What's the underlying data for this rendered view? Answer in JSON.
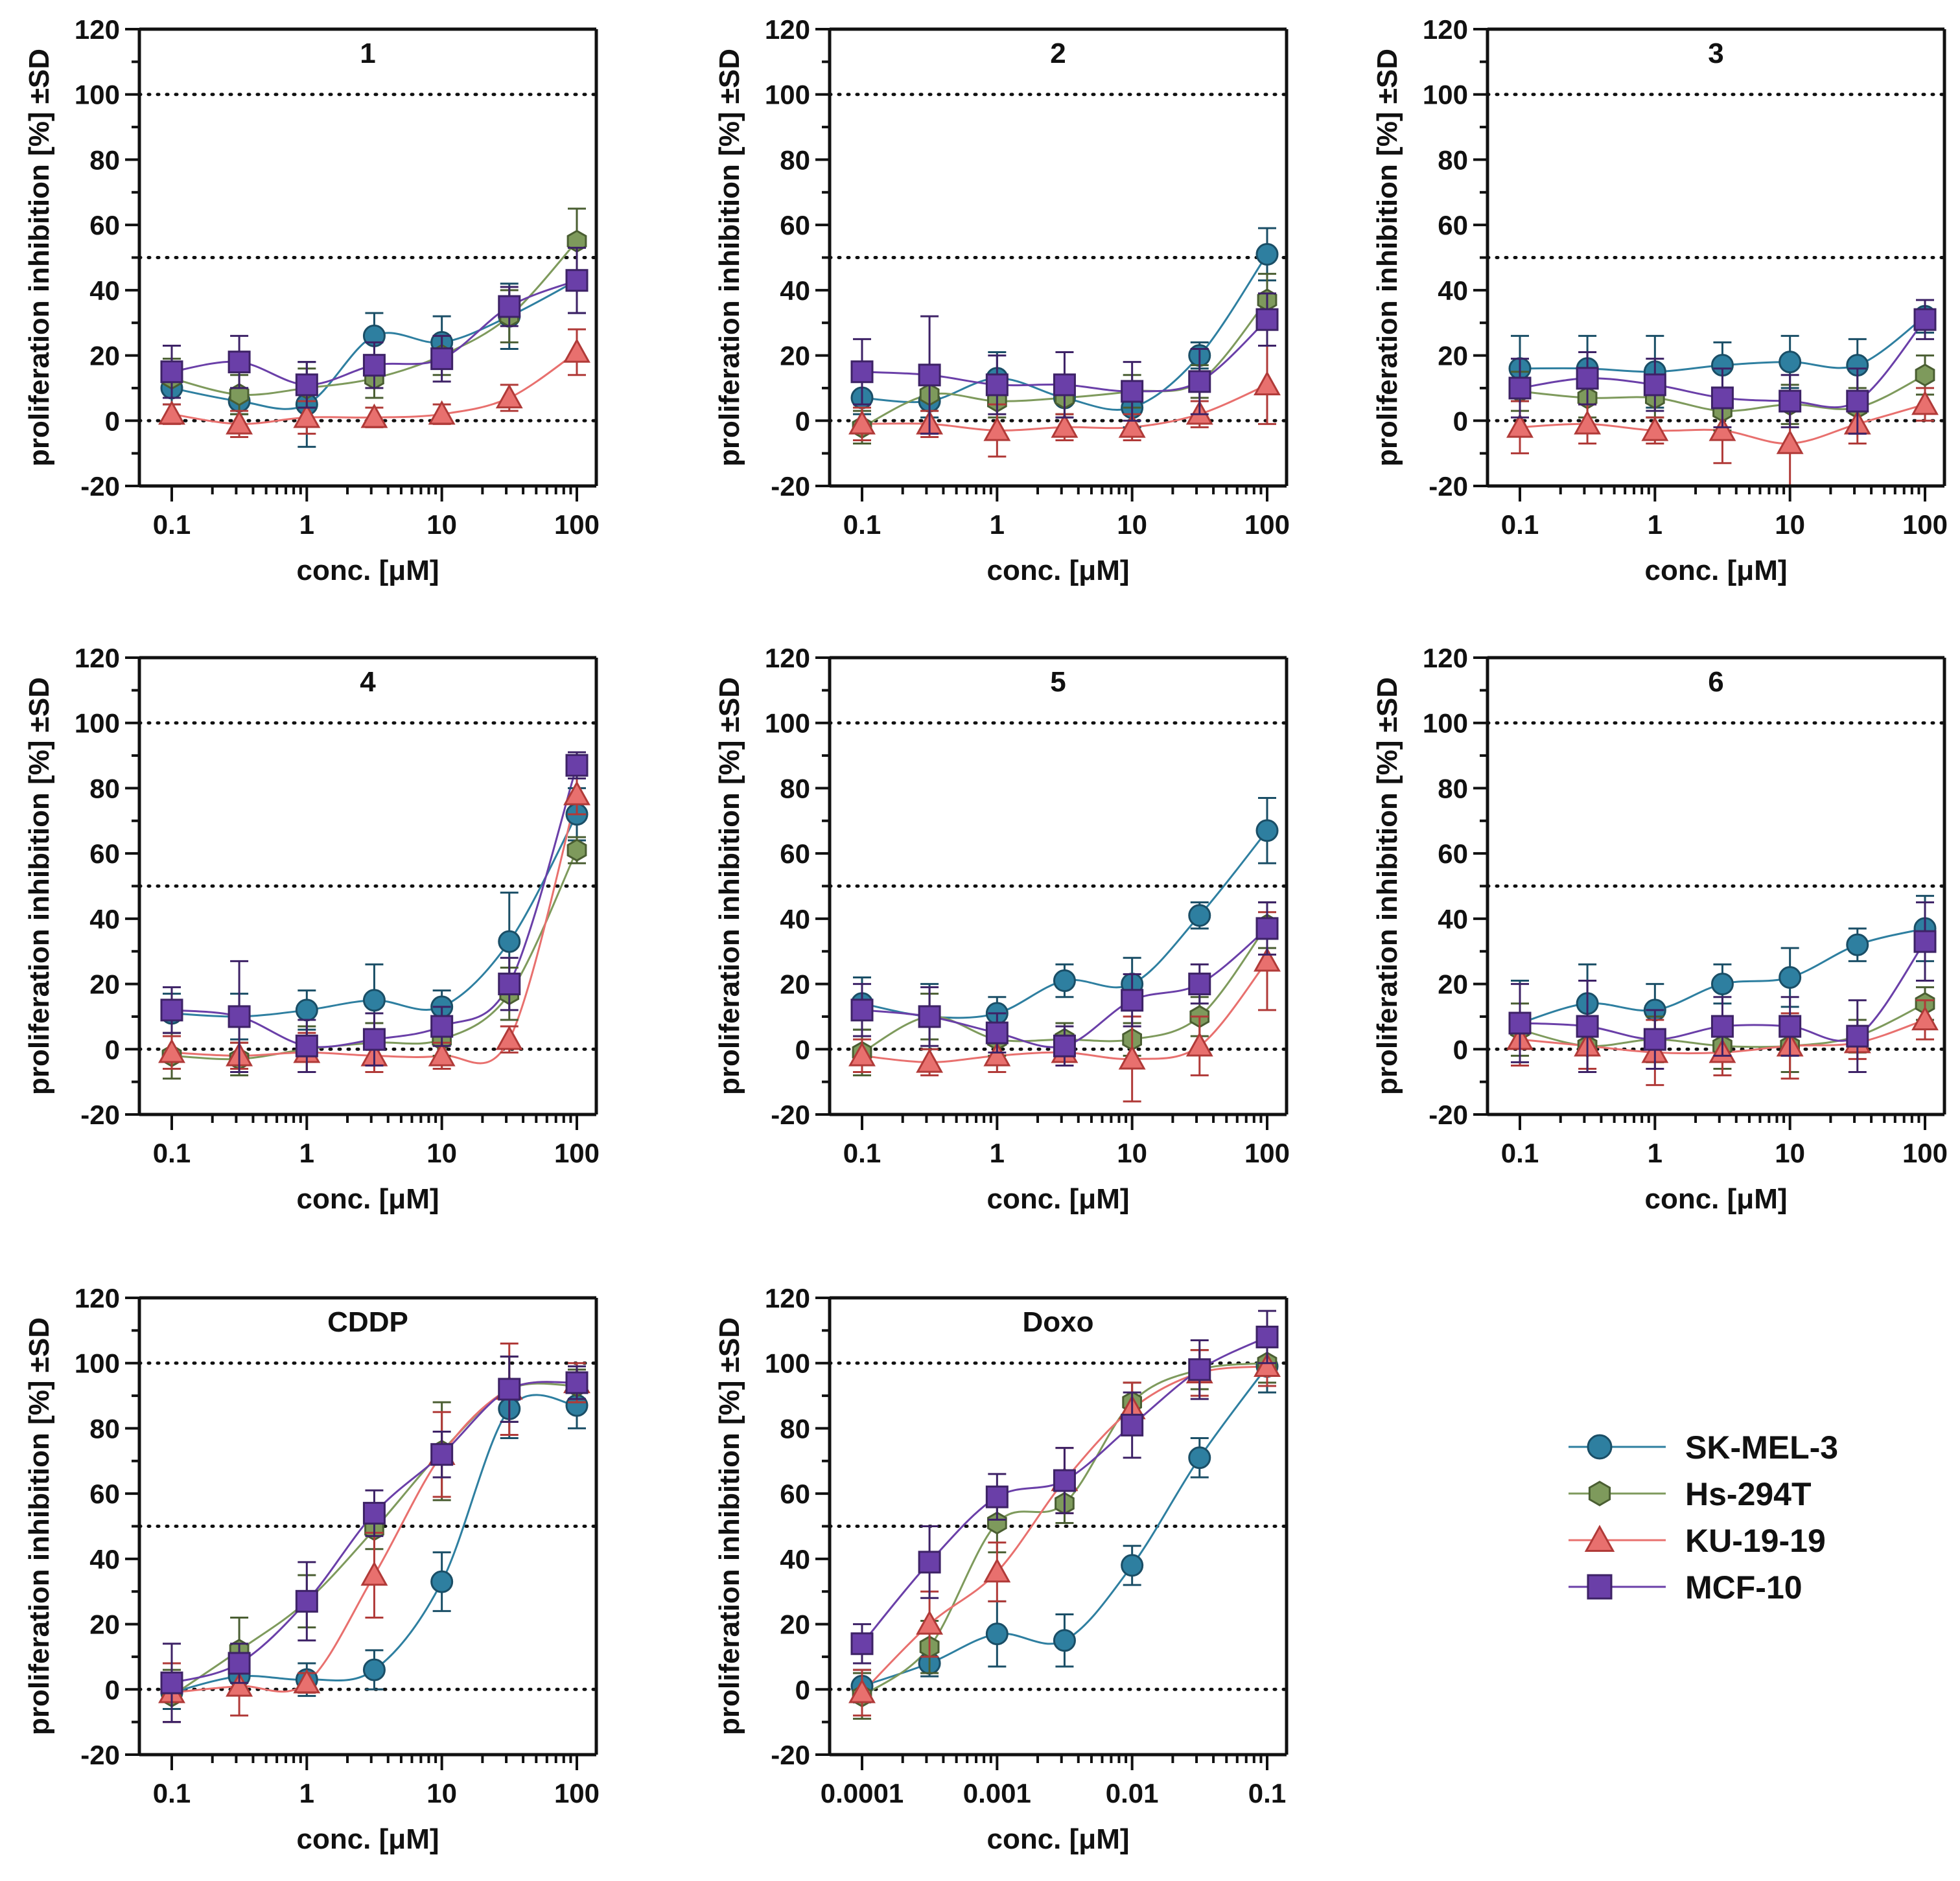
{
  "figure": {
    "y_axis_label": "proliferation inhibition [%] ±SD",
    "x_axis_label": "conc. [μM]",
    "reference_lines": [
      0,
      50,
      100
    ]
  },
  "legend": {
    "items": [
      {
        "name": "SK-MEL-3",
        "color": "#2E7FA0",
        "edge": "#1A4E66",
        "marker": "circle"
      },
      {
        "name": "Hs-294T",
        "color": "#7E9A5C",
        "edge": "#4A5E32",
        "marker": "hexagon"
      },
      {
        "name": "KU-19-19",
        "color": "#E8706E",
        "edge": "#B03A38",
        "marker": "triangle"
      },
      {
        "name": "MCF-10",
        "color": "#6A3FA8",
        "edge": "#3D2266",
        "marker": "square"
      }
    ]
  },
  "chart_data": [
    {
      "type": "scatter",
      "title": "1",
      "xlabel": "conc. [μM]",
      "ylabel": "proliferation inhibition [%] ±SD",
      "xscale": "log",
      "xlim": [
        0.1,
        100
      ],
      "ylim": [
        -20,
        120
      ],
      "x": [
        0.1,
        0.316,
        1,
        3.16,
        10,
        31.6,
        100
      ],
      "xticks": [
        {
          "v": 0.1,
          "label": "0.1"
        },
        {
          "v": 1,
          "label": "1"
        },
        {
          "v": 10,
          "label": "10"
        },
        {
          "v": 100,
          "label": "100"
        }
      ],
      "series": [
        {
          "name": "SK-MEL-3",
          "values": [
            10,
            6,
            5,
            26,
            24,
            32,
            43
          ],
          "errors": [
            5,
            4,
            13,
            7,
            8,
            10,
            10
          ]
        },
        {
          "name": "Hs-294T",
          "values": [
            13,
            8,
            10,
            13,
            20,
            32,
            55
          ],
          "errors": [
            6,
            6,
            6,
            6,
            6,
            8,
            10
          ]
        },
        {
          "name": "KU-19-19",
          "values": [
            2,
            -1,
            1,
            1,
            2,
            7,
            21
          ],
          "errors": [
            3,
            4,
            5,
            3,
            3,
            4,
            7
          ]
        },
        {
          "name": "MCF-10",
          "values": [
            15,
            18,
            11,
            17,
            19,
            35,
            43
          ],
          "errors": [
            8,
            8,
            7,
            7,
            7,
            6,
            10
          ]
        }
      ]
    },
    {
      "type": "scatter",
      "title": "2",
      "xlabel": "conc. [μM]",
      "ylabel": "proliferation inhibition [%] ±SD",
      "xscale": "log",
      "xlim": [
        0.1,
        100
      ],
      "ylim": [
        -20,
        120
      ],
      "x": [
        0.1,
        0.316,
        1,
        3.16,
        10,
        31.6,
        100
      ],
      "xticks": [
        {
          "v": 0.1,
          "label": "0.1"
        },
        {
          "v": 1,
          "label": "1"
        },
        {
          "v": 10,
          "label": "10"
        },
        {
          "v": 100,
          "label": "100"
        }
      ],
      "series": [
        {
          "name": "SK-MEL-3",
          "values": [
            7,
            6,
            13,
            7,
            4,
            20,
            51
          ],
          "errors": [
            5,
            5,
            8,
            6,
            6,
            4,
            8
          ]
        },
        {
          "name": "Hs-294T",
          "values": [
            -2,
            8,
            6,
            7,
            9,
            12,
            37
          ],
          "errors": [
            5,
            5,
            5,
            5,
            5,
            5,
            8
          ]
        },
        {
          "name": "KU-19-19",
          "values": [
            -1,
            -1,
            -3,
            -2,
            -2,
            2,
            11
          ],
          "errors": [
            5,
            4,
            8,
            4,
            4,
            4,
            12
          ]
        },
        {
          "name": "MCF-10",
          "values": [
            15,
            14,
            11,
            11,
            9,
            12,
            31
          ],
          "errors": [
            10,
            18,
            9,
            10,
            9,
            10,
            8
          ]
        }
      ]
    },
    {
      "type": "scatter",
      "title": "3",
      "xlabel": "conc. [μM]",
      "ylabel": "proliferation inhibition [%] ±SD",
      "xscale": "log",
      "xlim": [
        0.1,
        100
      ],
      "ylim": [
        -20,
        120
      ],
      "x": [
        0.1,
        0.316,
        1,
        3.16,
        10,
        31.6,
        100
      ],
      "xticks": [
        {
          "v": 0.1,
          "label": "0.1"
        },
        {
          "v": 1,
          "label": "1"
        },
        {
          "v": 10,
          "label": "10"
        },
        {
          "v": 100,
          "label": "100"
        }
      ],
      "series": [
        {
          "name": "SK-MEL-3",
          "values": [
            16,
            16,
            15,
            17,
            18,
            17,
            32
          ],
          "errors": [
            10,
            10,
            11,
            7,
            8,
            8,
            5
          ]
        },
        {
          "name": "Hs-294T",
          "values": [
            9,
            7,
            7,
            3,
            5,
            4,
            14
          ],
          "errors": [
            6,
            6,
            6,
            6,
            6,
            6,
            6
          ]
        },
        {
          "name": "KU-19-19",
          "values": [
            -2,
            -1,
            -3,
            -3,
            -7,
            -1,
            5
          ],
          "errors": [
            8,
            6,
            4,
            10,
            14,
            6,
            5
          ]
        },
        {
          "name": "MCF-10",
          "values": [
            10,
            13,
            11,
            7,
            6,
            6,
            31
          ],
          "errors": [
            9,
            8,
            8,
            9,
            8,
            10,
            6
          ]
        }
      ]
    },
    {
      "type": "scatter",
      "title": "4",
      "xlabel": "conc. [μM]",
      "ylabel": "proliferation inhibition [%] ±SD",
      "xscale": "log",
      "xlim": [
        0.1,
        100
      ],
      "ylim": [
        -20,
        120
      ],
      "x": [
        0.1,
        0.316,
        1,
        3.16,
        10,
        31.6,
        100
      ],
      "xticks": [
        {
          "v": 0.1,
          "label": "0.1"
        },
        {
          "v": 1,
          "label": "1"
        },
        {
          "v": 10,
          "label": "10"
        },
        {
          "v": 100,
          "label": "100"
        }
      ],
      "series": [
        {
          "name": "SK-MEL-3",
          "values": [
            11,
            10,
            12,
            15,
            13,
            33,
            72
          ],
          "errors": [
            6,
            7,
            6,
            11,
            5,
            15,
            8
          ]
        },
        {
          "name": "Hs-294T",
          "values": [
            -2,
            -3,
            0,
            2,
            3,
            17,
            61
          ],
          "errors": [
            7,
            5,
            7,
            6,
            5,
            8,
            4
          ]
        },
        {
          "name": "KU-19-19",
          "values": [
            -1,
            -2,
            -1,
            -2,
            -2,
            3,
            78
          ],
          "errors": [
            5,
            4,
            6,
            5,
            4,
            4,
            6
          ]
        },
        {
          "name": "MCF-10",
          "values": [
            12,
            10,
            1,
            3,
            7,
            20,
            87
          ],
          "errors": [
            7,
            17,
            8,
            8,
            6,
            8,
            4
          ]
        }
      ]
    },
    {
      "type": "scatter",
      "title": "5",
      "xlabel": "conc. [μM]",
      "ylabel": "proliferation inhibition [%] ±SD",
      "xscale": "log",
      "xlim": [
        0.1,
        100
      ],
      "ylim": [
        -20,
        120
      ],
      "x": [
        0.1,
        0.316,
        1,
        3.16,
        10,
        31.6,
        100
      ],
      "xticks": [
        {
          "v": 0.1,
          "label": "0.1"
        },
        {
          "v": 1,
          "label": "1"
        },
        {
          "v": 10,
          "label": "10"
        },
        {
          "v": 100,
          "label": "100"
        }
      ],
      "series": [
        {
          "name": "SK-MEL-3",
          "values": [
            14,
            10,
            11,
            21,
            20,
            41,
            67
          ],
          "errors": [
            8,
            10,
            5,
            5,
            8,
            4,
            10
          ]
        },
        {
          "name": "Hs-294T",
          "values": [
            -1,
            10,
            3,
            3,
            3,
            10,
            38
          ],
          "errors": [
            7,
            7,
            5,
            5,
            5,
            6,
            7
          ]
        },
        {
          "name": "KU-19-19",
          "values": [
            -2,
            -4,
            -2,
            -1,
            -3,
            1,
            27
          ],
          "errors": [
            5,
            4,
            5,
            4,
            13,
            9,
            15
          ]
        },
        {
          "name": "MCF-10",
          "values": [
            12,
            10,
            5,
            1,
            15,
            20,
            37
          ],
          "errors": [
            8,
            9,
            6,
            6,
            8,
            6,
            8
          ]
        }
      ]
    },
    {
      "type": "scatter",
      "title": "6",
      "xlabel": "conc. [μM]",
      "ylabel": "proliferation inhibition [%] ±SD",
      "xscale": "log",
      "xlim": [
        0.1,
        100
      ],
      "ylim": [
        -20,
        120
      ],
      "x": [
        0.1,
        0.316,
        1,
        3.16,
        10,
        31.6,
        100
      ],
      "xticks": [
        {
          "v": 0.1,
          "label": "0.1"
        },
        {
          "v": 1,
          "label": "1"
        },
        {
          "v": 10,
          "label": "10"
        },
        {
          "v": 100,
          "label": "100"
        }
      ],
      "series": [
        {
          "name": "SK-MEL-3",
          "values": [
            8,
            14,
            12,
            20,
            22,
            32,
            37
          ],
          "errors": [
            13,
            12,
            8,
            6,
            9,
            5,
            10
          ]
        },
        {
          "name": "Hs-294T",
          "values": [
            6,
            1,
            3,
            1,
            1,
            4,
            14
          ],
          "errors": [
            8,
            8,
            7,
            7,
            8,
            5,
            5
          ]
        },
        {
          "name": "KU-19-19",
          "values": [
            3,
            1,
            -1,
            -1,
            1,
            2,
            9
          ],
          "errors": [
            8,
            7,
            10,
            7,
            10,
            5,
            6
          ]
        },
        {
          "name": "MCF-10",
          "values": [
            8,
            7,
            3,
            7,
            7,
            4,
            33
          ],
          "errors": [
            12,
            14,
            9,
            9,
            9,
            11,
            12
          ]
        }
      ]
    },
    {
      "type": "scatter",
      "title": "CDDP",
      "xlabel": "conc. [μM]",
      "ylabel": "proliferation inhibition [%] ±SD",
      "xscale": "log",
      "xlim": [
        0.1,
        100
      ],
      "ylim": [
        -20,
        120
      ],
      "x": [
        0.1,
        0.316,
        1,
        3.16,
        10,
        31.6,
        100
      ],
      "xticks": [
        {
          "v": 0.1,
          "label": "0.1"
        },
        {
          "v": 1,
          "label": "1"
        },
        {
          "v": 10,
          "label": "10"
        },
        {
          "v": 100,
          "label": "100"
        }
      ],
      "series": [
        {
          "name": "SK-MEL-3",
          "values": [
            -1,
            4,
            3,
            6,
            33,
            86,
            87
          ],
          "errors": [
            5,
            5,
            5,
            6,
            9,
            9,
            7
          ]
        },
        {
          "name": "Hs-294T",
          "values": [
            -2,
            12,
            27,
            49,
            73,
            92,
            93
          ],
          "errors": [
            8,
            10,
            8,
            6,
            15,
            10,
            5
          ]
        },
        {
          "name": "KU-19-19",
          "values": [
            -1,
            1,
            2,
            35,
            72,
            92,
            94
          ],
          "errors": [
            9,
            9,
            3,
            13,
            13,
            14,
            6
          ]
        },
        {
          "name": "MCF-10",
          "values": [
            2,
            8,
            27,
            54,
            72,
            92,
            94
          ],
          "errors": [
            12,
            6,
            12,
            7,
            7,
            10,
            5
          ]
        }
      ]
    },
    {
      "type": "scatter",
      "title": "Doxo",
      "xlabel": "conc. [μM]",
      "ylabel": "proliferation inhibition [%] ±SD",
      "xscale": "log",
      "xlim": [
        0.0001,
        0.1
      ],
      "ylim": [
        -20,
        120
      ],
      "x": [
        0.0001,
        0.000316,
        0.001,
        0.00316,
        0.01,
        0.0316,
        0.1
      ],
      "xticks": [
        {
          "v": 0.0001,
          "label": "0.0001"
        },
        {
          "v": 0.001,
          "label": "0.001"
        },
        {
          "v": 0.01,
          "label": "0.01"
        },
        {
          "v": 0.1,
          "label": "0.1"
        }
      ],
      "series": [
        {
          "name": "SK-MEL-3",
          "values": [
            1,
            8,
            17,
            15,
            38,
            71,
            99
          ],
          "errors": [
            5,
            4,
            10,
            8,
            6,
            6,
            8
          ]
        },
        {
          "name": "Hs-294T",
          "values": [
            -2,
            13,
            51,
            57,
            88,
            98,
            100
          ],
          "errors": [
            7,
            8,
            9,
            6,
            6,
            6,
            6
          ]
        },
        {
          "name": "KU-19-19",
          "values": [
            -1,
            20,
            36,
            64,
            86,
            97,
            99
          ],
          "errors": [
            7,
            10,
            9,
            10,
            8,
            7,
            6
          ]
        },
        {
          "name": "MCF-10",
          "values": [
            14,
            39,
            59,
            64,
            81,
            98,
            108
          ],
          "errors": [
            6,
            11,
            7,
            10,
            10,
            9,
            8
          ]
        }
      ]
    }
  ]
}
